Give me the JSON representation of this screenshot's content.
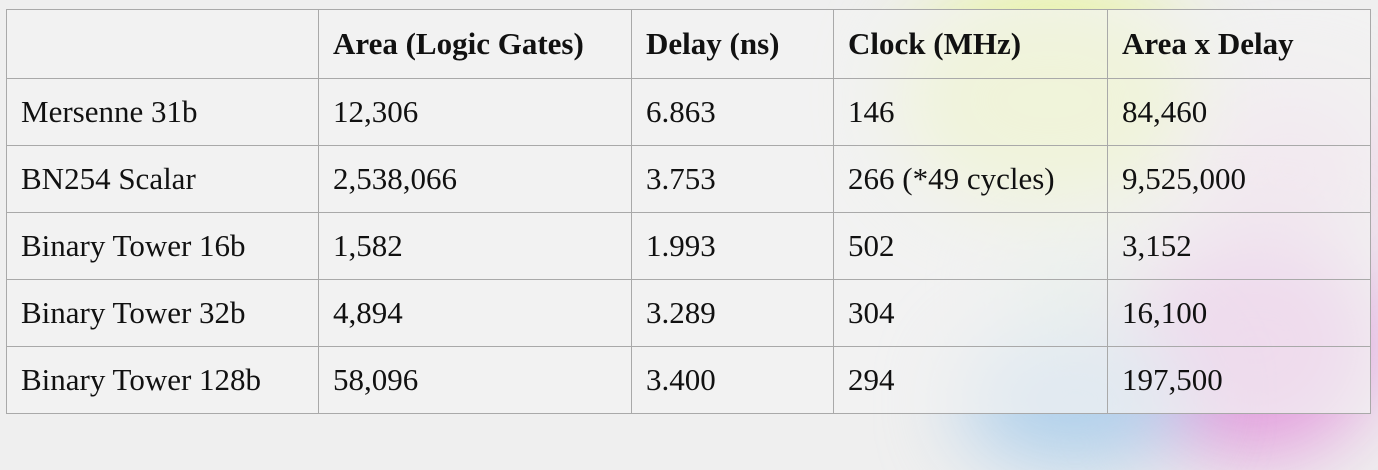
{
  "table": {
    "headers": [
      "",
      "Area (Logic Gates)",
      "Delay (ns)",
      "Clock (MHz)",
      "Area x Delay"
    ],
    "rows": [
      [
        "Mersenne 31b",
        "12,306",
        "6.863",
        "146",
        "84,460"
      ],
      [
        "BN254 Scalar",
        "2,538,066",
        "3.753",
        "266 (*49 cycles)",
        "9,525,000"
      ],
      [
        "Binary Tower 16b",
        "1,582",
        "1.993",
        "502",
        "3,152"
      ],
      [
        "Binary Tower 32b",
        "4,894",
        "3.289",
        "304",
        "16,100"
      ],
      [
        "Binary Tower 128b",
        "58,096",
        "3.400",
        "294",
        "197,500"
      ]
    ]
  }
}
